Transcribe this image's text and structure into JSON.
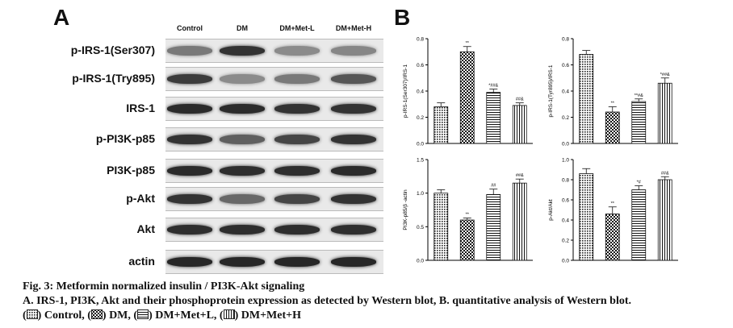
{
  "panel_a": {
    "letter": "A",
    "lanes": [
      "Control",
      "DM",
      "DM+Met-L",
      "DM+Met-H"
    ],
    "rows": [
      {
        "label": "p-IRS-1(Ser307)",
        "intensity": [
          0.45,
          0.85,
          0.35,
          0.38
        ]
      },
      {
        "label": "p-IRS-1(Try895)",
        "intensity": [
          0.8,
          0.35,
          0.45,
          0.65
        ]
      },
      {
        "label": "IRS-1",
        "intensity": [
          0.9,
          0.9,
          0.85,
          0.85
        ]
      },
      {
        "label": "p-PI3K-p85",
        "intensity": [
          0.85,
          0.6,
          0.75,
          0.85
        ]
      },
      {
        "label": "PI3K-p85",
        "intensity": [
          0.9,
          0.88,
          0.88,
          0.9
        ]
      },
      {
        "label": "p-Akt",
        "intensity": [
          0.85,
          0.55,
          0.75,
          0.85
        ]
      },
      {
        "label": "Akt",
        "intensity": [
          0.88,
          0.88,
          0.88,
          0.88
        ]
      },
      {
        "label": "actin",
        "intensity": [
          0.92,
          0.92,
          0.92,
          0.92
        ]
      }
    ]
  },
  "panel_b": {
    "letter": "B"
  },
  "chart_data": [
    {
      "type": "bar",
      "ylabel": "p-IRS-1(Ser307)/IRS-1",
      "ylim": [
        0,
        0.8
      ],
      "yticks": [
        "0.0",
        "0.2",
        "0.4",
        "0.6",
        "0.8"
      ],
      "categories": [
        "Control",
        "DM",
        "DM+Met+L",
        "DM+Met+H"
      ],
      "values": [
        0.28,
        0.7,
        0.39,
        0.29
      ],
      "errors": [
        0.03,
        0.04,
        0.025,
        0.02
      ],
      "annotations": [
        "",
        "**",
        "*##&",
        "##&"
      ]
    },
    {
      "type": "bar",
      "ylabel": "p-IRS-1(Tyr895)/IRS-1",
      "ylim": [
        0,
        0.8
      ],
      "yticks": [
        "0.0",
        "0.2",
        "0.4",
        "0.6",
        "0.8"
      ],
      "categories": [
        "Control",
        "DM",
        "DM+Met+L",
        "DM+Met+H"
      ],
      "values": [
        0.68,
        0.24,
        0.32,
        0.46
      ],
      "errors": [
        0.03,
        0.04,
        0.02,
        0.04
      ],
      "annotations": [
        "",
        "**",
        "**#&",
        "*##&"
      ]
    },
    {
      "type": "bar",
      "ylabel": "PI3K-p85/β -actin",
      "ylim": [
        0,
        1.5
      ],
      "yticks": [
        "0.0",
        "0.5",
        "1.0",
        "1.5"
      ],
      "categories": [
        "Control",
        "DM",
        "DM+Met+L",
        "DM+Met+H"
      ],
      "values": [
        1.0,
        0.6,
        0.98,
        1.15
      ],
      "errors": [
        0.05,
        0.03,
        0.08,
        0.06
      ],
      "annotations": [
        "",
        "**",
        "##",
        "##&"
      ]
    },
    {
      "type": "bar",
      "ylabel": "p-Akt/Akt",
      "ylim": [
        0,
        1.0
      ],
      "yticks": [
        "0.0",
        "0.2",
        "0.4",
        "0.6",
        "0.8",
        "1.0"
      ],
      "categories": [
        "Control",
        "DM",
        "DM+Met+L",
        "DM+Met+H"
      ],
      "values": [
        0.86,
        0.46,
        0.7,
        0.8
      ],
      "errors": [
        0.05,
        0.07,
        0.04,
        0.03
      ],
      "annotations": [
        "",
        "**",
        "*#",
        "##&"
      ]
    }
  ],
  "caption": {
    "title": "Fig. 3: Metformin normalized insulin / PI3K-Akt signaling",
    "line2": "A. IRS-1, PI3K, Akt and their phosphoprotein expression as detected by Western blot, B. quantitative analysis of Western blot.",
    "line3_parts": [
      "(",
      ") Control, (",
      ") DM, (",
      ") DM+Met+L, (",
      ") DM+Met+H"
    ]
  }
}
